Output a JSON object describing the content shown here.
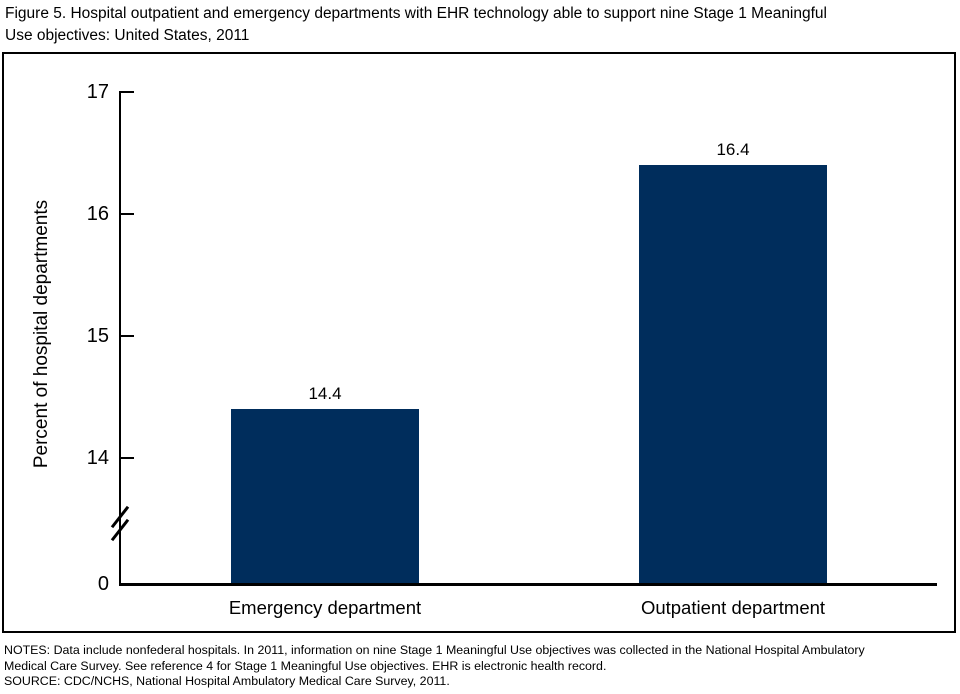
{
  "figure": {
    "title_lines": [
      "Figure 5. Hospital outpatient and emergency departments with EHR technology able to support nine Stage 1 Meaningful",
      "Use objectives: United States, 2011"
    ]
  },
  "chart_data": {
    "type": "bar",
    "categories": [
      "Emergency department",
      "Outpatient department"
    ],
    "values": [
      14.4,
      16.4
    ],
    "value_labels": [
      "14.4",
      "16.4"
    ],
    "title": "Figure 5. Hospital outpatient and emergency departments with EHR technology able to support nine Stage 1 Meaningful Use objectives: United States, 2011",
    "xlabel": "",
    "ylabel": "Percent of hospital departments",
    "ytick_labels": [
      "17",
      "16",
      "15",
      "14",
      "0"
    ],
    "yticks_numeric": [
      17,
      16,
      15,
      14,
      0
    ],
    "ylim_display": [
      14,
      17
    ],
    "axis_break_between": [
      0,
      14
    ],
    "grid": false,
    "legend": false,
    "bar_color": "#002D5C"
  },
  "notes": {
    "lines": [
      "NOTES: Data include nonfederal hospitals. In 2011, information on nine Stage 1 Meaningful Use objectives was collected in the National Hospital Ambulatory",
      "Medical Care Survey. See reference 4 for Stage 1 Meaningful Use objectives. EHR is electronic health record.",
      "SOURCE: CDC/NCHS, National Hospital Ambulatory Medical Care Survey, 2011."
    ]
  }
}
